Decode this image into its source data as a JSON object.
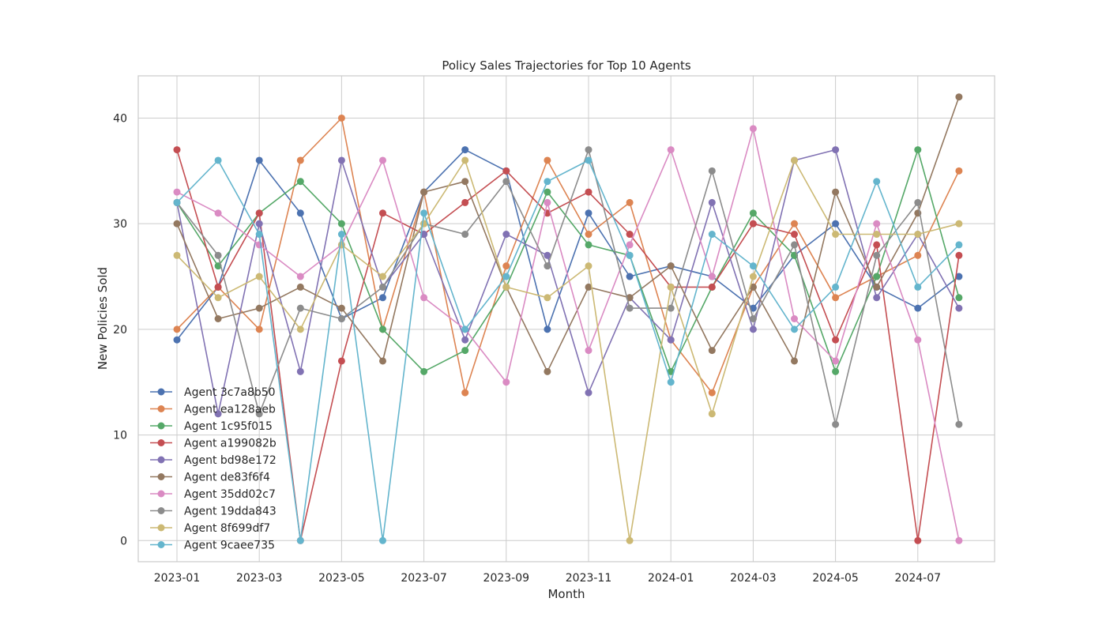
{
  "chart_data": {
    "type": "line",
    "title": "Policy Sales Trajectories for Top 10 Agents",
    "xlabel": "Month",
    "ylabel": "New Policies Sold",
    "x_tick_labels": [
      "2023-01",
      "2023-03",
      "2023-05",
      "2023-07",
      "2023-09",
      "2023-11",
      "2024-01",
      "2024-03",
      "2024-05",
      "2024-07"
    ],
    "y_ticks": [
      0,
      10,
      20,
      30,
      40
    ],
    "ylim": [
      -2,
      44
    ],
    "x": [
      "2023-01",
      "2023-02",
      "2023-03",
      "2023-04",
      "2023-05",
      "2023-06",
      "2023-07",
      "2023-08",
      "2023-09",
      "2023-10",
      "2023-11",
      "2023-12",
      "2024-01",
      "2024-02",
      "2024-03",
      "2024-04",
      "2024-05",
      "2024-06",
      "2024-07",
      "2024-08"
    ],
    "grid": true,
    "legend_position": "lower-left",
    "series": [
      {
        "name": "Agent 3c7a8b50",
        "color": "#4c72b0",
        "values": [
          19,
          24,
          36,
          31,
          21,
          23,
          33,
          37,
          35,
          20,
          31,
          25,
          26,
          25,
          22,
          27,
          30,
          24,
          22,
          25
        ]
      },
      {
        "name": "Agent ea128aeb",
        "color": "#dd8452",
        "values": [
          20,
          24,
          20,
          36,
          40,
          20,
          33,
          14,
          26,
          36,
          29,
          32,
          19,
          14,
          24,
          30,
          23,
          25,
          27,
          35
        ]
      },
      {
        "name": "Agent 1c95f015",
        "color": "#55a868",
        "values": [
          32,
          26,
          31,
          34,
          30,
          20,
          16,
          18,
          24,
          33,
          28,
          27,
          16,
          24,
          31,
          27,
          16,
          25,
          37,
          23
        ]
      },
      {
        "name": "Agent a199082b",
        "color": "#c44e52",
        "values": [
          37,
          24,
          31,
          0,
          17,
          31,
          29,
          32,
          35,
          31,
          33,
          29,
          24,
          24,
          30,
          29,
          19,
          28,
          0,
          27
        ]
      },
      {
        "name": "Agent bd98e172",
        "color": "#8172b3",
        "values": [
          32,
          12,
          30,
          16,
          36,
          24,
          29,
          19,
          29,
          27,
          14,
          23,
          19,
          32,
          20,
          36,
          37,
          23,
          29,
          22
        ]
      },
      {
        "name": "Agent de83f6f4",
        "color": "#937860",
        "values": [
          30,
          21,
          22,
          24,
          22,
          17,
          33,
          34,
          24,
          16,
          24,
          23,
          26,
          18,
          24,
          17,
          33,
          24,
          31,
          42
        ]
      },
      {
        "name": "Agent 35dd02c7",
        "color": "#da8bc3",
        "values": [
          33,
          31,
          28,
          25,
          28,
          36,
          23,
          20,
          15,
          32,
          18,
          28,
          37,
          25,
          39,
          21,
          17,
          30,
          19,
          0
        ]
      },
      {
        "name": "Agent 19dda843",
        "color": "#8c8c8c",
        "values": [
          32,
          27,
          12,
          22,
          21,
          24,
          30,
          29,
          34,
          26,
          37,
          22,
          22,
          35,
          21,
          28,
          11,
          27,
          32,
          11
        ]
      },
      {
        "name": "Agent 8f699df7",
        "color": "#ccb974",
        "values": [
          27,
          23,
          25,
          20,
          28,
          25,
          30,
          36,
          24,
          23,
          26,
          0,
          24,
          12,
          25,
          36,
          29,
          29,
          29,
          30
        ]
      },
      {
        "name": "Agent 9caee735",
        "color": "#64b5cd",
        "values": [
          32,
          36,
          29,
          0,
          29,
          0,
          31,
          20,
          25,
          34,
          36,
          27,
          15,
          29,
          26,
          20,
          24,
          34,
          24,
          28
        ]
      }
    ]
  }
}
